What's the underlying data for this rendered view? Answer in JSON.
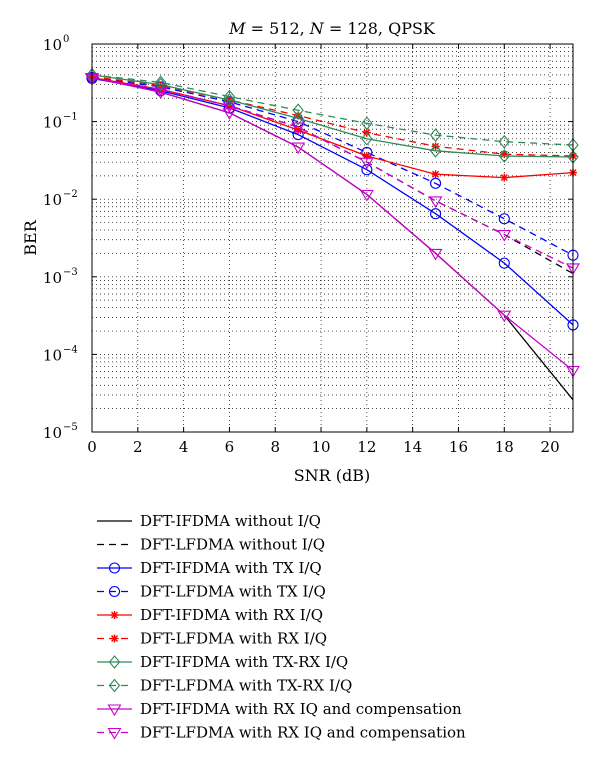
{
  "chart_data": {
    "type": "line",
    "title": "M = 512, N = 128, QPSK",
    "title_parts": [
      {
        "text": "M",
        "italic": true
      },
      {
        "text": " = 512, ",
        "italic": false
      },
      {
        "text": "N",
        "italic": true
      },
      {
        "text": " = 128, QPSK",
        "italic": false
      }
    ],
    "xlabel": "SNR (dB)",
    "ylabel": "BER",
    "xlim": [
      0,
      21
    ],
    "ylim": [
      1e-05,
      1
    ],
    "yscale": "log",
    "grid": "dotted",
    "x_ticks": [
      0,
      2,
      4,
      6,
      8,
      10,
      12,
      14,
      16,
      18,
      20
    ],
    "y_ticks": [
      {
        "value": 1,
        "base": "10",
        "exp": "0"
      },
      {
        "value": 0.1,
        "base": "10",
        "exp": "−1"
      },
      {
        "value": 0.01,
        "base": "10",
        "exp": "−2"
      },
      {
        "value": 0.001,
        "base": "10",
        "exp": "−3"
      },
      {
        "value": 0.0001,
        "base": "10",
        "exp": "−4"
      },
      {
        "value": 1e-05,
        "base": "10",
        "exp": "−5"
      }
    ],
    "legend_position": "below",
    "series": [
      {
        "name": "DFT-IFDMA without I/Q",
        "color": "#000000",
        "dash": "solid",
        "marker": "none",
        "x": [
          0,
          3,
          6,
          9,
          12,
          15,
          18,
          21
        ],
        "y": [
          0.37,
          0.24,
          0.13,
          0.047,
          0.0115,
          0.002,
          0.00032,
          2.6e-05
        ]
      },
      {
        "name": "DFT-LFDMA without I/Q",
        "color": "#000000",
        "dash": "dashed",
        "marker": "none",
        "x": [
          0,
          3,
          6,
          9,
          12,
          15,
          18,
          21
        ],
        "y": [
          0.36,
          0.26,
          0.16,
          0.085,
          0.03,
          0.0095,
          0.0035,
          0.0011
        ]
      },
      {
        "name": "DFT-IFDMA with TX I/Q",
        "color": "#0000ff",
        "dash": "solid",
        "marker": "circle",
        "x": [
          0,
          3,
          6,
          9,
          12,
          15,
          18,
          21
        ],
        "y": [
          0.36,
          0.25,
          0.15,
          0.068,
          0.024,
          0.0065,
          0.0015,
          0.00024
        ]
      },
      {
        "name": "DFT-LFDMA with TX I/Q",
        "color": "#0000ff",
        "dash": "dashed",
        "marker": "circle",
        "x": [
          0,
          3,
          6,
          9,
          12,
          15,
          18,
          21
        ],
        "y": [
          0.37,
          0.28,
          0.18,
          0.1,
          0.04,
          0.016,
          0.0056,
          0.0019
        ]
      },
      {
        "name": "DFT-IFDMA with RX I/Q",
        "color": "#ff0000",
        "dash": "solid",
        "marker": "star",
        "x": [
          0,
          3,
          6,
          9,
          12,
          15,
          18,
          21
        ],
        "y": [
          0.37,
          0.26,
          0.16,
          0.078,
          0.036,
          0.021,
          0.019,
          0.022
        ]
      },
      {
        "name": "DFT-LFDMA with RX I/Q",
        "color": "#ff0000",
        "dash": "dashed",
        "marker": "star",
        "x": [
          0,
          3,
          6,
          9,
          12,
          15,
          18,
          21
        ],
        "y": [
          0.38,
          0.29,
          0.19,
          0.12,
          0.072,
          0.048,
          0.038,
          0.036
        ]
      },
      {
        "name": "DFT-IFDMA with TX-RX I/Q",
        "color": "#2e8b57",
        "dash": "solid",
        "marker": "diamond",
        "x": [
          0,
          3,
          6,
          9,
          12,
          15,
          18,
          21
        ],
        "y": [
          0.4,
          0.3,
          0.19,
          0.11,
          0.06,
          0.042,
          0.036,
          0.035
        ]
      },
      {
        "name": "DFT-LFDMA with TX-RX I/Q",
        "color": "#2e8b57",
        "dash": "dashed",
        "marker": "diamond",
        "x": [
          0,
          3,
          6,
          9,
          12,
          15,
          18,
          21
        ],
        "y": [
          0.4,
          0.32,
          0.21,
          0.14,
          0.095,
          0.067,
          0.055,
          0.05
        ]
      },
      {
        "name": "DFT-IFDMA with RX IQ and compensation",
        "color": "#cc00cc",
        "dash": "solid",
        "marker": "triangle-down",
        "x": [
          0,
          3,
          6,
          9,
          12,
          15,
          18,
          21
        ],
        "y": [
          0.37,
          0.24,
          0.13,
          0.047,
          0.0115,
          0.002,
          0.00032,
          6.2e-05
        ]
      },
      {
        "name": "DFT-LFDMA with RX IQ and compensation",
        "color": "#cc00cc",
        "dash": "dashed",
        "marker": "triangle-down",
        "x": [
          0,
          3,
          6,
          9,
          12,
          15,
          18,
          21
        ],
        "y": [
          0.36,
          0.26,
          0.16,
          0.085,
          0.03,
          0.0095,
          0.0035,
          0.0013
        ]
      }
    ]
  }
}
